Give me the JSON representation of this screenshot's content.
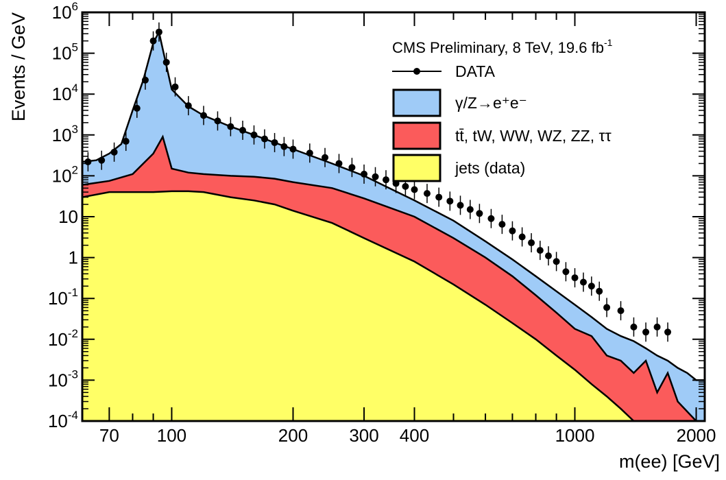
{
  "chart_data": {
    "type": "area",
    "title": "",
    "xlabel": "m(ee) [GeV]",
    "ylabel": "Events / GeV",
    "x_scale": "log",
    "y_scale": "log",
    "xlim": [
      60,
      2100
    ],
    "ylim": [
      0.0001,
      1000000
    ],
    "x_ticks": [
      {
        "value": 70,
        "label": "70"
      },
      {
        "value": 100,
        "label": "100"
      },
      {
        "value": 200,
        "label": "200"
      },
      {
        "value": 300,
        "label": "300"
      },
      {
        "value": 400,
        "label": "400"
      },
      {
        "value": 1000,
        "label": "1000"
      },
      {
        "value": 2000,
        "label": "2000"
      }
    ],
    "y_ticks": [
      {
        "value": 0.0001,
        "base": "10",
        "exp": "-4"
      },
      {
        "value": 0.001,
        "base": "10",
        "exp": "-3"
      },
      {
        "value": 0.01,
        "base": "10",
        "exp": "-2"
      },
      {
        "value": 0.1,
        "base": "10",
        "exp": "-1"
      },
      {
        "value": 1,
        "base": "1",
        "exp": ""
      },
      {
        "value": 10,
        "base": "10",
        "exp": ""
      },
      {
        "value": 100,
        "base": "10",
        "exp": "2"
      },
      {
        "value": 1000,
        "base": "10",
        "exp": "3"
      },
      {
        "value": 10000,
        "base": "10",
        "exp": "4"
      },
      {
        "value": 100000,
        "base": "10",
        "exp": "5"
      },
      {
        "value": 1000000,
        "base": "10",
        "exp": "6"
      }
    ],
    "grid": false,
    "legend": {
      "placement": "top-right",
      "header": {
        "main": "CMS Preliminary, 8 TeV, 19.6 fb",
        "sup": "-1"
      },
      "entries": [
        {
          "key": "data",
          "label": "DATA"
        },
        {
          "key": "dy",
          "label": "γ/Z→e⁺e⁻"
        },
        {
          "key": "ttbar",
          "label": "tt̄, tW, WW, WZ, ZZ, ττ"
        },
        {
          "key": "jets",
          "label": "jets (data)"
        }
      ]
    },
    "colors": {
      "dy": "#9fcbf7",
      "ttbar": "#fb5b5b",
      "jets": "#ffff66",
      "outline": "#000000"
    },
    "stacked_series": [
      {
        "key": "jets",
        "name": "jets (data)",
        "points": [
          [
            60,
            30
          ],
          [
            70,
            40
          ],
          [
            80,
            40
          ],
          [
            90,
            40
          ],
          [
            100,
            42
          ],
          [
            110,
            42
          ],
          [
            120,
            40
          ],
          [
            140,
            30
          ],
          [
            160,
            25
          ],
          [
            180,
            20
          ],
          [
            200,
            14
          ],
          [
            250,
            7
          ],
          [
            300,
            3
          ],
          [
            400,
            0.8
          ],
          [
            500,
            0.22
          ],
          [
            600,
            0.07
          ],
          [
            700,
            0.025
          ],
          [
            800,
            0.01
          ],
          [
            900,
            0.004
          ],
          [
            1000,
            0.0018
          ],
          [
            1100,
            0.0008
          ],
          [
            1200,
            0.0004
          ],
          [
            1300,
            0.0002
          ],
          [
            1400,
            0.0001
          ],
          [
            1600,
            0.0001
          ],
          [
            1800,
            0.0001
          ],
          [
            2000,
            0.0001
          ],
          [
            2100,
            0.0001
          ]
        ]
      },
      {
        "key": "ttbar",
        "name": "tt̄, tW, WW, WZ, ZZ, ττ",
        "points": [
          [
            60,
            60
          ],
          [
            70,
            75
          ],
          [
            80,
            110
          ],
          [
            90,
            350
          ],
          [
            95,
            900
          ],
          [
            100,
            150
          ],
          [
            110,
            120
          ],
          [
            120,
            110
          ],
          [
            140,
            100
          ],
          [
            160,
            95
          ],
          [
            180,
            85
          ],
          [
            200,
            70
          ],
          [
            250,
            50
          ],
          [
            300,
            28
          ],
          [
            400,
            10
          ],
          [
            500,
            3
          ],
          [
            600,
            1
          ],
          [
            700,
            0.35
          ],
          [
            800,
            0.12
          ],
          [
            900,
            0.045
          ],
          [
            1000,
            0.018
          ],
          [
            1100,
            0.012
          ],
          [
            1200,
            0.004
          ],
          [
            1300,
            0.003
          ],
          [
            1400,
            0.0015
          ],
          [
            1500,
            0.003
          ],
          [
            1600,
            0.0005
          ],
          [
            1700,
            0.0015
          ],
          [
            1800,
            0.0003
          ],
          [
            2000,
            0.0001
          ],
          [
            2100,
            0.0001
          ]
        ]
      },
      {
        "key": "dy",
        "name": "γ/Z→e⁺e⁻",
        "points": [
          [
            60,
            220
          ],
          [
            65,
            240
          ],
          [
            70,
            350
          ],
          [
            75,
            600
          ],
          [
            80,
            4000
          ],
          [
            85,
            22000
          ],
          [
            90,
            180000
          ],
          [
            93,
            330000
          ],
          [
            97,
            50000
          ],
          [
            100,
            13000
          ],
          [
            110,
            5000
          ],
          [
            120,
            3000
          ],
          [
            140,
            1600
          ],
          [
            160,
            1000
          ],
          [
            180,
            650
          ],
          [
            200,
            450
          ],
          [
            250,
            200
          ],
          [
            300,
            100
          ],
          [
            400,
            25
          ],
          [
            500,
            8
          ],
          [
            600,
            2.5
          ],
          [
            700,
            0.9
          ],
          [
            800,
            0.35
          ],
          [
            900,
            0.15
          ],
          [
            1000,
            0.07
          ],
          [
            1100,
            0.035
          ],
          [
            1200,
            0.018
          ],
          [
            1300,
            0.012
          ],
          [
            1400,
            0.009
          ],
          [
            1500,
            0.006
          ],
          [
            1600,
            0.004
          ],
          [
            1700,
            0.003
          ],
          [
            1800,
            0.002
          ],
          [
            1900,
            0.0015
          ],
          [
            2000,
            0.001
          ],
          [
            2100,
            0.001
          ]
        ]
      }
    ],
    "data_series": {
      "name": "DATA",
      "points": [
        [
          62,
          220
        ],
        [
          67,
          240
        ],
        [
          72,
          380
        ],
        [
          77,
          700
        ],
        [
          82,
          4500
        ],
        [
          86,
          22000
        ],
        [
          90,
          200000
        ],
        [
          93,
          330000
        ],
        [
          97,
          60000
        ],
        [
          102,
          15000
        ],
        [
          110,
          5200
        ],
        [
          120,
          3000
        ],
        [
          130,
          2200
        ],
        [
          140,
          1600
        ],
        [
          150,
          1300
        ],
        [
          160,
          1000
        ],
        [
          170,
          800
        ],
        [
          180,
          650
        ],
        [
          190,
          520
        ],
        [
          200,
          450
        ],
        [
          220,
          360
        ],
        [
          240,
          280
        ],
        [
          260,
          200
        ],
        [
          280,
          160
        ],
        [
          300,
          110
        ],
        [
          320,
          95
        ],
        [
          340,
          80
        ],
        [
          360,
          65
        ],
        [
          380,
          55
        ],
        [
          400,
          46
        ],
        [
          430,
          37
        ],
        [
          460,
          30
        ],
        [
          490,
          24
        ],
        [
          520,
          19
        ],
        [
          550,
          15
        ],
        [
          580,
          12
        ],
        [
          620,
          9
        ],
        [
          660,
          6.5
        ],
        [
          700,
          4.5
        ],
        [
          740,
          3.2
        ],
        [
          780,
          2.3
        ],
        [
          820,
          1.5
        ],
        [
          860,
          1.1
        ],
        [
          900,
          0.8
        ],
        [
          950,
          0.45
        ],
        [
          1000,
          0.32
        ],
        [
          1050,
          0.25
        ],
        [
          1100,
          0.2
        ],
        [
          1150,
          0.15
        ],
        [
          1200,
          0.06
        ],
        [
          1300,
          0.05
        ],
        [
          1400,
          0.02
        ],
        [
          1500,
          0.015
        ],
        [
          1600,
          0.02
        ],
        [
          1700,
          0.015
        ]
      ]
    }
  }
}
